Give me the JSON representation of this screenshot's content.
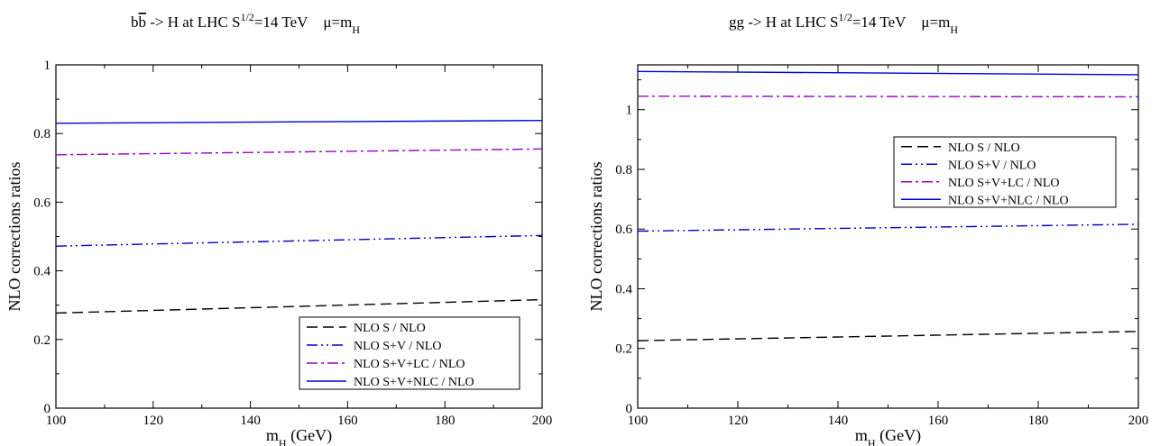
{
  "chart_data": [
    {
      "type": "line",
      "title_parts": {
        "proc_pre": "b",
        "proc_bar": "b",
        "proc_post": " -> H  at  LHC  S",
        "sqrt_sup": "1/2",
        "energy": "=14 TeV",
        "scale": "μ=m",
        "scale_sub": "H"
      },
      "xlabel_main": "m",
      "xlabel_sub": "H",
      "xlabel_unit": " (GeV)",
      "ylabel": "NLO  corrections  ratios",
      "x": [
        100,
        200
      ],
      "xlim": [
        100,
        200
      ],
      "ylim": [
        0,
        1
      ],
      "xticks": [
        100,
        120,
        140,
        160,
        180,
        200
      ],
      "yticks": [
        0,
        0.2,
        0.4,
        0.6,
        0.8,
        1
      ],
      "ytick_labels": [
        "0",
        "0.2",
        "0.4",
        "0.6",
        "0.8",
        "1"
      ],
      "legend_position": "bottom-right",
      "series": [
        {
          "name": "NLO S / NLO",
          "values": [
            0.277,
            0.316
          ],
          "color": "#000000",
          "dash": "dashed"
        },
        {
          "name": "NLO S+V / NLO",
          "values": [
            0.472,
            0.503
          ],
          "color": "#0000cc",
          "dash": "dash-dot-dot"
        },
        {
          "name": "NLO S+V+LC / NLO",
          "values": [
            0.738,
            0.755
          ],
          "color": "#9900cc",
          "dash": "dash-dot"
        },
        {
          "name": "NLO S+V+NLC / NLO",
          "values": [
            0.83,
            0.838
          ],
          "color": "#0000dd",
          "dash": "solid"
        }
      ]
    },
    {
      "type": "line",
      "title_parts": {
        "proc_pre": "gg -> H  at  LHC  S",
        "proc_bar": "",
        "proc_post": "",
        "sqrt_sup": "1/2",
        "energy": "=14 TeV",
        "scale": "μ=m",
        "scale_sub": "H"
      },
      "xlabel_main": "m",
      "xlabel_sub": "H",
      "xlabel_unit": " (GeV)",
      "ylabel": "NLO  corrections  ratios",
      "x": [
        100,
        200
      ],
      "xlim": [
        100,
        200
      ],
      "ylim": [
        0,
        1.15
      ],
      "xticks": [
        100,
        120,
        140,
        160,
        180,
        200
      ],
      "yticks": [
        0,
        0.2,
        0.4,
        0.6,
        0.8,
        1
      ],
      "ytick_labels": [
        "0",
        "0.2",
        "0.4",
        "0.6",
        "0.8",
        "1"
      ],
      "legend_position": "upper-right",
      "series": [
        {
          "name": "NLO S / NLO",
          "values": [
            0.226,
            0.257
          ],
          "color": "#000000",
          "dash": "dashed"
        },
        {
          "name": "NLO S+V / NLO",
          "values": [
            0.593,
            0.616
          ],
          "color": "#0000cc",
          "dash": "dash-dot-dot"
        },
        {
          "name": "NLO S+V+LC / NLO",
          "values": [
            1.045,
            1.043
          ],
          "color": "#9900cc",
          "dash": "dash-dot"
        },
        {
          "name": "NLO S+V+NLC / NLO",
          "values": [
            1.128,
            1.117
          ],
          "color": "#0000dd",
          "dash": "solid"
        }
      ]
    }
  ]
}
